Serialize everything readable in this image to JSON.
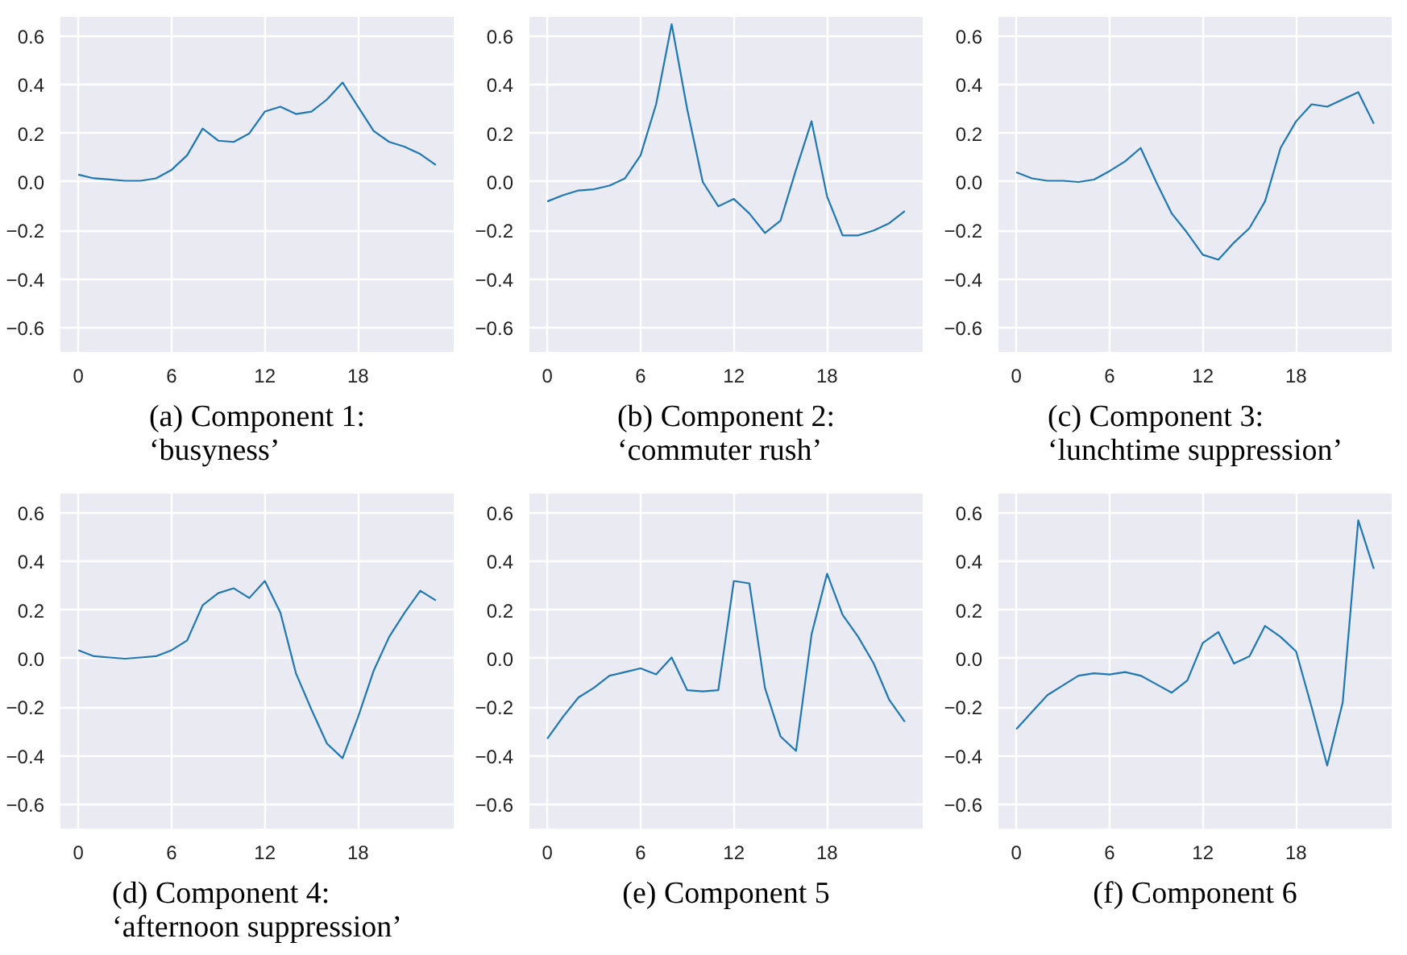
{
  "chart_data": [
    {
      "type": "line",
      "title": "(a) Component 1:\n‘busyness’",
      "x": [
        0,
        1,
        2,
        3,
        4,
        5,
        6,
        7,
        8,
        9,
        10,
        11,
        12,
        13,
        14,
        15,
        16,
        17,
        18,
        19,
        20,
        21,
        22,
        23
      ],
      "series": [
        {
          "color": "#1f77b4",
          "values": [
            0.03,
            0.015,
            0.01,
            0.005,
            0.005,
            0.015,
            0.05,
            0.11,
            0.22,
            0.17,
            0.165,
            0.2,
            0.29,
            0.31,
            0.28,
            0.29,
            0.34,
            0.41,
            0.31,
            0.21,
            0.165,
            0.145,
            0.115,
            0.07
          ]
        }
      ],
      "xlim": [
        -1.15,
        24.15
      ],
      "ylim": [
        -0.7,
        0.68
      ],
      "xticks": [
        0,
        6,
        12,
        18
      ],
      "yticks": [
        {
          "value": -0.6,
          "label": "−0.6"
        },
        {
          "value": -0.4,
          "label": "−0.4"
        },
        {
          "value": -0.2,
          "label": "−0.2"
        },
        {
          "value": 0,
          "label": "0.0"
        },
        {
          "value": 0.2,
          "label": "0.2"
        },
        {
          "value": 0.4,
          "label": "0.4"
        },
        {
          "value": 0.6,
          "label": "0.6"
        }
      ],
      "grid": true
    },
    {
      "type": "line",
      "title": "(b) Component 2:\n‘commuter rush’",
      "x": [
        0,
        1,
        2,
        3,
        4,
        5,
        6,
        7,
        8,
        9,
        10,
        11,
        12,
        13,
        14,
        15,
        16,
        17,
        18,
        19,
        20,
        21,
        22,
        23
      ],
      "series": [
        {
          "color": "#1f77b4",
          "values": [
            -0.08,
            -0.055,
            -0.035,
            -0.03,
            -0.015,
            0.015,
            0.11,
            0.32,
            0.65,
            0.3,
            0.0,
            -0.1,
            -0.07,
            -0.13,
            -0.21,
            -0.16,
            0.05,
            0.25,
            -0.06,
            -0.22,
            -0.22,
            -0.2,
            -0.17,
            -0.12
          ]
        }
      ],
      "xlim": [
        -1.15,
        24.15
      ],
      "ylim": [
        -0.7,
        0.68
      ],
      "xticks": [
        0,
        6,
        12,
        18
      ],
      "yticks": [
        {
          "value": -0.6,
          "label": "−0.6"
        },
        {
          "value": -0.4,
          "label": "−0.4"
        },
        {
          "value": -0.2,
          "label": "−0.2"
        },
        {
          "value": 0,
          "label": "0.0"
        },
        {
          "value": 0.2,
          "label": "0.2"
        },
        {
          "value": 0.4,
          "label": "0.4"
        },
        {
          "value": 0.6,
          "label": "0.6"
        }
      ],
      "grid": true
    },
    {
      "type": "line",
      "title": "(c) Component 3:\n‘lunchtime suppression’",
      "x": [
        0,
        1,
        2,
        3,
        4,
        5,
        6,
        7,
        8,
        9,
        10,
        11,
        12,
        13,
        14,
        15,
        16,
        17,
        18,
        19,
        20,
        21,
        22,
        23
      ],
      "series": [
        {
          "color": "#1f77b4",
          "values": [
            0.04,
            0.015,
            0.005,
            0.005,
            0.0,
            0.01,
            0.045,
            0.085,
            0.14,
            0.0,
            -0.13,
            -0.21,
            -0.3,
            -0.32,
            -0.25,
            -0.19,
            -0.08,
            0.14,
            0.25,
            0.32,
            0.31,
            0.34,
            0.37,
            0.24
          ]
        }
      ],
      "xlim": [
        -1.15,
        24.15
      ],
      "ylim": [
        -0.7,
        0.68
      ],
      "xticks": [
        0,
        6,
        12,
        18
      ],
      "yticks": [
        {
          "value": -0.6,
          "label": "−0.6"
        },
        {
          "value": -0.4,
          "label": "−0.4"
        },
        {
          "value": -0.2,
          "label": "−0.2"
        },
        {
          "value": 0,
          "label": "0.0"
        },
        {
          "value": 0.2,
          "label": "0.2"
        },
        {
          "value": 0.4,
          "label": "0.4"
        },
        {
          "value": 0.6,
          "label": "0.6"
        }
      ],
      "grid": true
    },
    {
      "type": "line",
      "title": "(d) Component 4:\n‘afternoon suppression’",
      "x": [
        0,
        1,
        2,
        3,
        4,
        5,
        6,
        7,
        8,
        9,
        10,
        11,
        12,
        13,
        14,
        15,
        16,
        17,
        18,
        19,
        20,
        21,
        22,
        23
      ],
      "series": [
        {
          "color": "#1f77b4",
          "values": [
            0.035,
            0.01,
            0.005,
            0.0,
            0.005,
            0.01,
            0.035,
            0.075,
            0.22,
            0.27,
            0.29,
            0.25,
            0.32,
            0.19,
            -0.06,
            -0.21,
            -0.35,
            -0.41,
            -0.24,
            -0.05,
            0.09,
            0.19,
            0.28,
            0.24
          ]
        }
      ],
      "xlim": [
        -1.15,
        24.15
      ],
      "ylim": [
        -0.7,
        0.68
      ],
      "xticks": [
        0,
        6,
        12,
        18
      ],
      "yticks": [
        {
          "value": -0.6,
          "label": "−0.6"
        },
        {
          "value": -0.4,
          "label": "−0.4"
        },
        {
          "value": -0.2,
          "label": "−0.2"
        },
        {
          "value": 0,
          "label": "0.0"
        },
        {
          "value": 0.2,
          "label": "0.2"
        },
        {
          "value": 0.4,
          "label": "0.4"
        },
        {
          "value": 0.6,
          "label": "0.6"
        }
      ],
      "grid": true
    },
    {
      "type": "line",
      "title": "(e) Component 5",
      "x": [
        0,
        1,
        2,
        3,
        4,
        5,
        6,
        7,
        8,
        9,
        10,
        11,
        12,
        13,
        14,
        15,
        16,
        17,
        18,
        19,
        20,
        21,
        22,
        23
      ],
      "series": [
        {
          "color": "#1f77b4",
          "values": [
            -0.33,
            -0.24,
            -0.16,
            -0.12,
            -0.07,
            -0.055,
            -0.04,
            -0.065,
            0.005,
            -0.13,
            -0.135,
            -0.13,
            0.32,
            0.31,
            -0.12,
            -0.32,
            -0.38,
            0.1,
            0.35,
            0.18,
            0.09,
            -0.02,
            -0.17,
            -0.26
          ]
        }
      ],
      "xlim": [
        -1.15,
        24.15
      ],
      "ylim": [
        -0.7,
        0.68
      ],
      "xticks": [
        0,
        6,
        12,
        18
      ],
      "yticks": [
        {
          "value": -0.6,
          "label": "−0.6"
        },
        {
          "value": -0.4,
          "label": "−0.4"
        },
        {
          "value": -0.2,
          "label": "−0.2"
        },
        {
          "value": 0,
          "label": "0.0"
        },
        {
          "value": 0.2,
          "label": "0.2"
        },
        {
          "value": 0.4,
          "label": "0.4"
        },
        {
          "value": 0.6,
          "label": "0.6"
        }
      ],
      "grid": true
    },
    {
      "type": "line",
      "title": "(f) Component 6",
      "x": [
        0,
        1,
        2,
        3,
        4,
        5,
        6,
        7,
        8,
        9,
        10,
        11,
        12,
        13,
        14,
        15,
        16,
        17,
        18,
        19,
        20,
        21,
        22,
        23
      ],
      "series": [
        {
          "color": "#1f77b4",
          "values": [
            -0.29,
            -0.22,
            -0.15,
            -0.11,
            -0.07,
            -0.06,
            -0.065,
            -0.055,
            -0.07,
            -0.105,
            -0.14,
            -0.09,
            0.065,
            0.11,
            -0.02,
            0.01,
            0.135,
            0.09,
            0.03,
            -0.2,
            -0.44,
            -0.18,
            0.57,
            0.37
          ]
        }
      ],
      "xlim": [
        -1.15,
        24.15
      ],
      "ylim": [
        -0.7,
        0.68
      ],
      "xticks": [
        0,
        6,
        12,
        18
      ],
      "yticks": [
        {
          "value": -0.6,
          "label": "−0.6"
        },
        {
          "value": -0.4,
          "label": "−0.4"
        },
        {
          "value": -0.2,
          "label": "−0.2"
        },
        {
          "value": 0,
          "label": "0.0"
        },
        {
          "value": 0.2,
          "label": "0.2"
        },
        {
          "value": 0.4,
          "label": "0.4"
        },
        {
          "value": 0.6,
          "label": "0.6"
        }
      ],
      "grid": true
    }
  ]
}
